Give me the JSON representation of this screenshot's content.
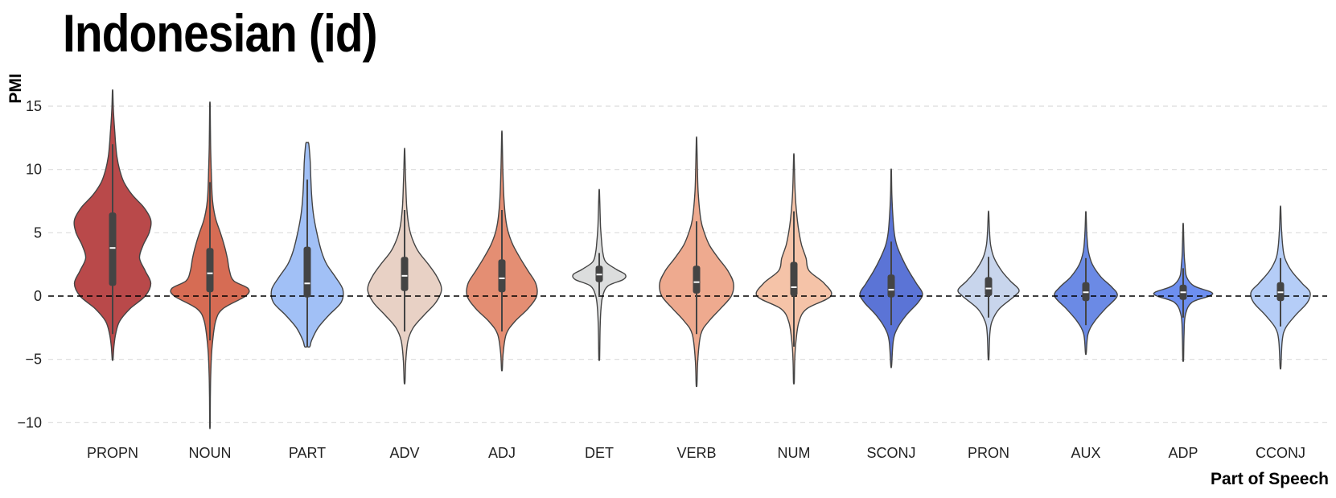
{
  "chart_data": {
    "type": "violin",
    "title": "Indonesian (id)",
    "xlabel": "Part of Speech",
    "ylabel": "PMI",
    "ylim": [
      -11,
      17
    ],
    "yticks": [
      15,
      10,
      5,
      0,
      -5,
      -10
    ],
    "ytick_labels": [
      "15",
      "10",
      "5",
      "0",
      "−5",
      "−10"
    ],
    "grid": true,
    "reference_line": 0,
    "categories": [
      "PROPN",
      "NOUN",
      "PART",
      "ADV",
      "ADJ",
      "DET",
      "VERB",
      "NUM",
      "SCONJ",
      "PRON",
      "AUX",
      "ADP",
      "CCONJ"
    ],
    "series": [
      {
        "name": "PROPN",
        "color": "#b9494a",
        "min": -5.0,
        "max": 16.2,
        "q1": 0.8,
        "median": 3.8,
        "q3": 6.6,
        "whisker_low": -3.0,
        "whisker_high": 12.0,
        "density": [
          [
            -5.0,
            0.01
          ],
          [
            -4.0,
            0.03
          ],
          [
            -3.0,
            0.07
          ],
          [
            -2.0,
            0.16
          ],
          [
            -1.0,
            0.4
          ],
          [
            0.0,
            0.75
          ],
          [
            1.0,
            0.88
          ],
          [
            2.0,
            0.75
          ],
          [
            3.0,
            0.62
          ],
          [
            4.0,
            0.7
          ],
          [
            5.0,
            0.84
          ],
          [
            6.0,
            0.88
          ],
          [
            7.0,
            0.72
          ],
          [
            8.0,
            0.45
          ],
          [
            9.0,
            0.26
          ],
          [
            10.0,
            0.16
          ],
          [
            11.0,
            0.1
          ],
          [
            12.0,
            0.07
          ],
          [
            13.0,
            0.05
          ],
          [
            14.0,
            0.03
          ],
          [
            15.0,
            0.015
          ],
          [
            16.2,
            0.005
          ]
        ]
      },
      {
        "name": "NOUN",
        "color": "#d66c54",
        "min": -10.3,
        "max": 15.1,
        "q1": 0.3,
        "median": 1.8,
        "q3": 3.8,
        "whisker_low": -3.5,
        "whisker_high": 9.0,
        "density": [
          [
            -10.3,
            0.005
          ],
          [
            -8.0,
            0.01
          ],
          [
            -6.0,
            0.02
          ],
          [
            -4.0,
            0.05
          ],
          [
            -2.0,
            0.13
          ],
          [
            -1.0,
            0.3
          ],
          [
            0.0,
            0.82
          ],
          [
            0.6,
            0.88
          ],
          [
            1.2,
            0.55
          ],
          [
            2.0,
            0.45
          ],
          [
            3.0,
            0.4
          ],
          [
            4.0,
            0.33
          ],
          [
            5.0,
            0.24
          ],
          [
            6.0,
            0.14
          ],
          [
            7.0,
            0.08
          ],
          [
            8.0,
            0.05
          ],
          [
            10.0,
            0.03
          ],
          [
            12.0,
            0.015
          ],
          [
            15.1,
            0.005
          ]
        ]
      },
      {
        "name": "PART",
        "color": "#a1c0f6",
        "min": -4.0,
        "max": 12.1,
        "q1": -0.1,
        "median": 1.0,
        "q3": 3.9,
        "whisker_low": -4.0,
        "whisker_high": 9.2,
        "density": [
          [
            -4.0,
            0.06
          ],
          [
            -3.5,
            0.1
          ],
          [
            -2.5,
            0.25
          ],
          [
            -1.5,
            0.5
          ],
          [
            -0.5,
            0.78
          ],
          [
            0.5,
            0.82
          ],
          [
            1.5,
            0.65
          ],
          [
            2.5,
            0.45
          ],
          [
            3.5,
            0.33
          ],
          [
            5.0,
            0.22
          ],
          [
            6.5,
            0.14
          ],
          [
            8.0,
            0.1
          ],
          [
            9.5,
            0.08
          ],
          [
            10.5,
            0.07
          ],
          [
            11.5,
            0.05
          ],
          [
            12.1,
            0.03
          ]
        ]
      },
      {
        "name": "ADV",
        "color": "#e8d1c5",
        "min": -6.8,
        "max": 11.5,
        "q1": 0.4,
        "median": 1.6,
        "q3": 3.1,
        "whisker_low": -2.8,
        "whisker_high": 6.8,
        "density": [
          [
            -6.8,
            0.01
          ],
          [
            -5.0,
            0.03
          ],
          [
            -3.5,
            0.08
          ],
          [
            -2.5,
            0.2
          ],
          [
            -1.5,
            0.45
          ],
          [
            -0.5,
            0.72
          ],
          [
            0.5,
            0.85
          ],
          [
            1.5,
            0.75
          ],
          [
            2.5,
            0.55
          ],
          [
            3.5,
            0.32
          ],
          [
            4.5,
            0.18
          ],
          [
            5.5,
            0.1
          ],
          [
            7.0,
            0.05
          ],
          [
            9.0,
            0.025
          ],
          [
            11.5,
            0.005
          ]
        ]
      },
      {
        "name": "ADJ",
        "color": "#e48e73",
        "min": -5.8,
        "max": 12.8,
        "q1": 0.3,
        "median": 1.4,
        "q3": 2.9,
        "whisker_low": -2.8,
        "whisker_high": 6.8,
        "density": [
          [
            -5.8,
            0.01
          ],
          [
            -4.5,
            0.03
          ],
          [
            -3.0,
            0.1
          ],
          [
            -2.0,
            0.3
          ],
          [
            -1.0,
            0.6
          ],
          [
            0.0,
            0.8
          ],
          [
            1.0,
            0.78
          ],
          [
            2.0,
            0.6
          ],
          [
            3.0,
            0.42
          ],
          [
            4.0,
            0.26
          ],
          [
            5.0,
            0.15
          ],
          [
            6.0,
            0.09
          ],
          [
            7.5,
            0.05
          ],
          [
            9.5,
            0.025
          ],
          [
            12.8,
            0.005
          ]
        ]
      },
      {
        "name": "DET",
        "color": "#dcdddd",
        "min": -4.9,
        "max": 8.3,
        "q1": 1.1,
        "median": 1.7,
        "q3": 2.4,
        "whisker_low": 0.0,
        "whisker_high": 3.4,
        "density": [
          [
            -4.9,
            0.01
          ],
          [
            -2.5,
            0.02
          ],
          [
            -1.0,
            0.04
          ],
          [
            0.0,
            0.08
          ],
          [
            0.8,
            0.2
          ],
          [
            1.3,
            0.55
          ],
          [
            1.7,
            0.6
          ],
          [
            2.1,
            0.4
          ],
          [
            2.7,
            0.15
          ],
          [
            3.5,
            0.08
          ],
          [
            4.5,
            0.05
          ],
          [
            5.5,
            0.03
          ],
          [
            6.5,
            0.02
          ],
          [
            8.3,
            0.005
          ]
        ]
      },
      {
        "name": "VERB",
        "color": "#eeaa8f",
        "min": -7.0,
        "max": 12.4,
        "q1": 0.2,
        "median": 1.1,
        "q3": 2.4,
        "whisker_low": -3.0,
        "whisker_high": 5.9,
        "density": [
          [
            -7.0,
            0.01
          ],
          [
            -5.0,
            0.03
          ],
          [
            -3.0,
            0.1
          ],
          [
            -2.0,
            0.28
          ],
          [
            -1.0,
            0.55
          ],
          [
            0.0,
            0.8
          ],
          [
            1.0,
            0.85
          ],
          [
            2.0,
            0.72
          ],
          [
            3.0,
            0.5
          ],
          [
            4.0,
            0.3
          ],
          [
            5.0,
            0.18
          ],
          [
            6.0,
            0.1
          ],
          [
            8.0,
            0.04
          ],
          [
            10.0,
            0.02
          ],
          [
            12.4,
            0.005
          ]
        ]
      },
      {
        "name": "NUM",
        "color": "#f5c3a8",
        "min": -6.8,
        "max": 11.1,
        "q1": 0.0,
        "median": 0.7,
        "q3": 2.7,
        "whisker_low": -4.0,
        "whisker_high": 6.7,
        "density": [
          [
            -6.8,
            0.01
          ],
          [
            -5.0,
            0.02
          ],
          [
            -3.5,
            0.05
          ],
          [
            -2.0,
            0.12
          ],
          [
            -1.0,
            0.3
          ],
          [
            0.0,
            0.85
          ],
          [
            1.0,
            0.7
          ],
          [
            2.0,
            0.35
          ],
          [
            3.0,
            0.28
          ],
          [
            4.0,
            0.18
          ],
          [
            5.0,
            0.12
          ],
          [
            6.0,
            0.08
          ],
          [
            7.5,
            0.04
          ],
          [
            9.0,
            0.02
          ],
          [
            11.1,
            0.005
          ]
        ]
      },
      {
        "name": "SCONJ",
        "color": "#5b74d6",
        "min": -5.5,
        "max": 9.9,
        "q1": -0.1,
        "median": 0.5,
        "q3": 1.7,
        "whisker_low": -2.3,
        "whisker_high": 4.3,
        "density": [
          [
            -5.5,
            0.01
          ],
          [
            -3.5,
            0.05
          ],
          [
            -2.5,
            0.15
          ],
          [
            -1.5,
            0.35
          ],
          [
            -0.5,
            0.62
          ],
          [
            0.2,
            0.72
          ],
          [
            1.0,
            0.58
          ],
          [
            2.0,
            0.4
          ],
          [
            3.0,
            0.25
          ],
          [
            4.0,
            0.13
          ],
          [
            5.0,
            0.07
          ],
          [
            6.5,
            0.035
          ],
          [
            8.0,
            0.015
          ],
          [
            9.9,
            0.005
          ]
        ]
      },
      {
        "name": "PRON",
        "color": "#c8d5ec",
        "min": -4.9,
        "max": 6.6,
        "q1": 0.0,
        "median": 0.6,
        "q3": 1.5,
        "whisker_low": -1.7,
        "whisker_high": 3.1,
        "density": [
          [
            -4.9,
            0.01
          ],
          [
            -3.0,
            0.03
          ],
          [
            -2.0,
            0.08
          ],
          [
            -1.0,
            0.25
          ],
          [
            0.0,
            0.6
          ],
          [
            0.5,
            0.7
          ],
          [
            1.2,
            0.5
          ],
          [
            2.0,
            0.3
          ],
          [
            3.0,
            0.13
          ],
          [
            4.0,
            0.05
          ],
          [
            5.0,
            0.025
          ],
          [
            6.6,
            0.005
          ]
        ]
      },
      {
        "name": "AUX",
        "color": "#6b8ae5",
        "min": -4.5,
        "max": 6.6,
        "q1": -0.4,
        "median": 0.3,
        "q3": 1.1,
        "whisker_low": -2.3,
        "whisker_high": 3.0,
        "density": [
          [
            -4.5,
            0.01
          ],
          [
            -3.0,
            0.05
          ],
          [
            -2.0,
            0.2
          ],
          [
            -1.0,
            0.45
          ],
          [
            0.0,
            0.72
          ],
          [
            0.7,
            0.6
          ],
          [
            1.5,
            0.35
          ],
          [
            2.5,
            0.15
          ],
          [
            3.5,
            0.06
          ],
          [
            4.5,
            0.03
          ],
          [
            5.5,
            0.015
          ],
          [
            6.6,
            0.005
          ]
        ]
      },
      {
        "name": "ADP",
        "color": "#6d8ff0",
        "min": -5.0,
        "max": 5.6,
        "q1": -0.3,
        "median": 0.3,
        "q3": 0.9,
        "whisker_low": -1.7,
        "whisker_high": 2.2,
        "density": [
          [
            -5.0,
            0.01
          ],
          [
            -3.0,
            0.02
          ],
          [
            -1.5,
            0.05
          ],
          [
            -0.5,
            0.2
          ],
          [
            0.0,
            0.6
          ],
          [
            0.3,
            0.65
          ],
          [
            0.8,
            0.25
          ],
          [
            1.5,
            0.08
          ],
          [
            2.5,
            0.04
          ],
          [
            3.5,
            0.02
          ],
          [
            5.6,
            0.005
          ]
        ]
      },
      {
        "name": "CCONJ",
        "color": "#b5cdf7",
        "min": -5.6,
        "max": 7.0,
        "q1": -0.4,
        "median": 0.3,
        "q3": 1.1,
        "whisker_low": -2.4,
        "whisker_high": 3.0,
        "density": [
          [
            -5.6,
            0.01
          ],
          [
            -3.5,
            0.04
          ],
          [
            -2.5,
            0.12
          ],
          [
            -1.5,
            0.35
          ],
          [
            -0.5,
            0.62
          ],
          [
            0.3,
            0.68
          ],
          [
            1.0,
            0.5
          ],
          [
            2.0,
            0.25
          ],
          [
            3.0,
            0.1
          ],
          [
            4.0,
            0.05
          ],
          [
            5.5,
            0.02
          ],
          [
            7.0,
            0.005
          ]
        ]
      }
    ]
  }
}
